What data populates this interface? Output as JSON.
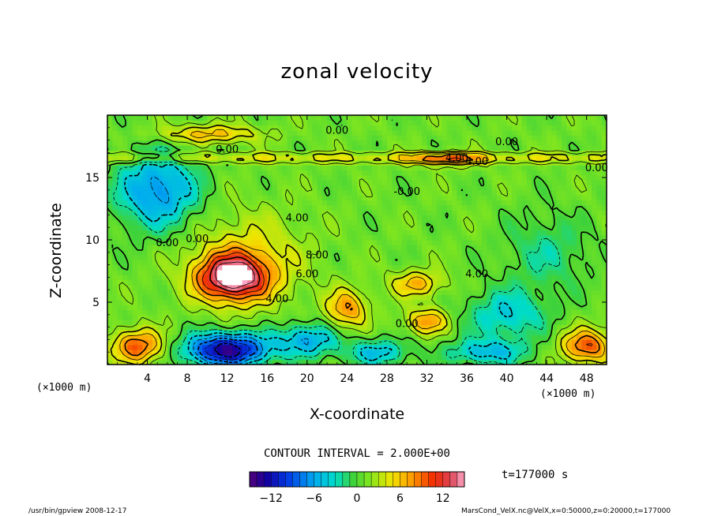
{
  "chart_data": {
    "type": "heatmap",
    "title": "zonal velocity",
    "xlabel": "X-coordinate",
    "ylabel": "Z-coordinate",
    "x_unit_left": "(×1000 m)",
    "x_unit_right": "(×1000 m)",
    "xlim": [
      0,
      50
    ],
    "ylim": [
      0,
      20
    ],
    "x_ticks": [
      "4",
      "8",
      "12",
      "16",
      "20",
      "24",
      "28",
      "32",
      "36",
      "40",
      "44",
      "48"
    ],
    "x_tick_values": [
      4,
      8,
      12,
      16,
      20,
      24,
      28,
      32,
      36,
      40,
      44,
      48
    ],
    "y_ticks": [
      "5",
      "10",
      "15"
    ],
    "y_tick_values": [
      5,
      10,
      15
    ],
    "contour_labels": [
      "0.00",
      "0.00",
      "4.00",
      "0.00",
      "-0.00",
      "4.00",
      "4.00",
      "0.00",
      "0.00",
      "4.00",
      "0.00",
      "6.00",
      "8.00",
      "4.00",
      "0.00"
    ],
    "contour_interval_text": "CONTOUR INTERVAL = 2.000E+00",
    "time_text": "t=177000 s",
    "colorbar": {
      "range": [
        -15,
        15
      ],
      "tick_labels": [
        "−12",
        "−6",
        "0",
        "6",
        "12"
      ],
      "tick_values": [
        -12,
        -6,
        0,
        6,
        12
      ]
    },
    "features": [
      {
        "x": 12.5,
        "z": 7.0,
        "value": 14,
        "sx": 3.5,
        "sz": 1.8
      },
      {
        "x": 14.0,
        "z": 8.5,
        "value": 4,
        "sx": 5.5,
        "sz": 3.5
      },
      {
        "x": 12.0,
        "z": 1.2,
        "value": -15,
        "sx": 4.0,
        "sz": 1.3
      },
      {
        "x": 3.0,
        "z": 1.5,
        "value": 9,
        "sx": 2.5,
        "sz": 1.3
      },
      {
        "x": 48.0,
        "z": 1.5,
        "value": 9,
        "sx": 2.5,
        "sz": 1.3
      },
      {
        "x": 5.0,
        "z": 14.0,
        "value": -8,
        "sx": 4.0,
        "sz": 3.0
      },
      {
        "x": 24.0,
        "z": 4.5,
        "value": 7,
        "sx": 2.0,
        "sz": 1.5
      },
      {
        "x": 32.0,
        "z": 3.5,
        "value": 7,
        "sx": 2.0,
        "sz": 1.0
      },
      {
        "x": 31.0,
        "z": 6.5,
        "value": 6,
        "sx": 2.5,
        "sz": 1.0
      },
      {
        "x": 34.0,
        "z": 16.5,
        "value": 7,
        "sx": 3.5,
        "sz": 0.5
      },
      {
        "x": 10.0,
        "z": 18.5,
        "value": 6,
        "sx": 5.0,
        "sz": 0.7
      },
      {
        "x": 20.0,
        "z": 2.0,
        "value": -7,
        "sx": 3.0,
        "sz": 1.3
      },
      {
        "x": 40.0,
        "z": 4.0,
        "value": -5,
        "sx": 4.0,
        "sz": 2.0
      },
      {
        "x": 44.0,
        "z": 9.0,
        "value": -3,
        "sx": 4.0,
        "sz": 3.0
      },
      {
        "x": 38.0,
        "z": 1.0,
        "value": -6,
        "sx": 4.0,
        "sz": 1.0
      },
      {
        "x": 27.0,
        "z": 1.0,
        "value": -6,
        "sx": 3.0,
        "sz": 1.0
      }
    ]
  },
  "footer": {
    "left": "/usr/bin/gpview  2008-12-17",
    "right": "MarsCond_VelX.nc@VelX,x=0:50000,z=0:20000,t=177000"
  }
}
